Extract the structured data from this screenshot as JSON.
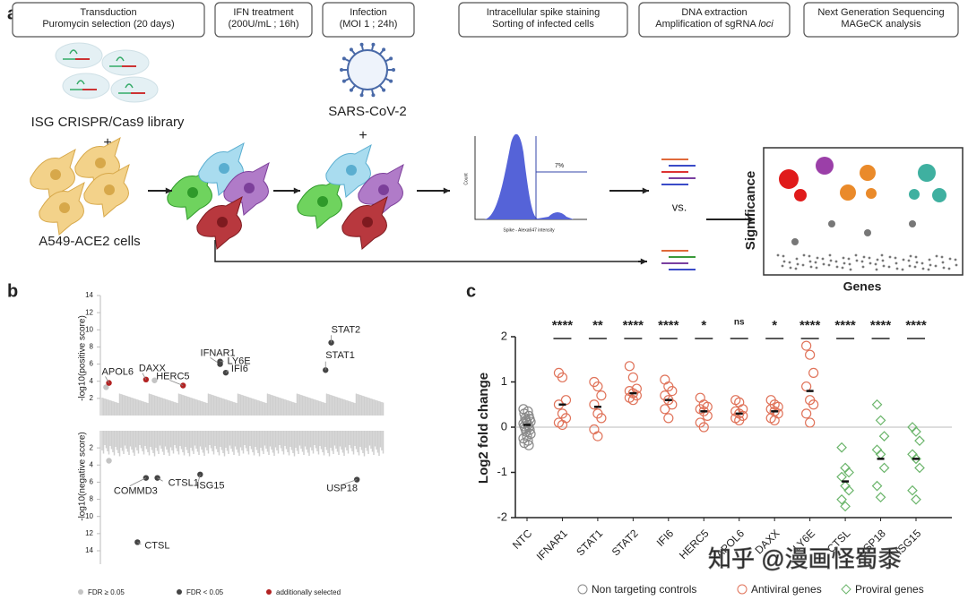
{
  "panel_labels": [
    "a",
    "b",
    "c"
  ],
  "workflow": {
    "steps": [
      [
        "Transduction",
        "Puromycin selection (20 days)"
      ],
      [
        "IFN treatment",
        "(200U/mL ; 16h)"
      ],
      [
        "Infection",
        "(MOI 1 ; 24h)"
      ],
      [
        "Intracellular spike staining",
        "Sorting of infected cells"
      ],
      [
        "DNA extraction",
        [
          "Amplification of sgRNA ",
          "loci"
        ]
      ],
      [
        "Next Generation Sequencing",
        "MAGeCK analysis"
      ]
    ],
    "library": "ISG CRISPR/Cas9 library",
    "plus": "+",
    "cells": "A549-ACE2 cells",
    "virus": "SARS-CoV-2",
    "vs": "vs.",
    "facs": {
      "y_label": "Count",
      "x_label": "Spike - Alexa647 intensity",
      "gate": "7%"
    },
    "significance": "Significance",
    "genes": "Genes"
  },
  "chart_data": [
    {
      "type": "manhattan",
      "ylabel_positive": "-log10(positive score)",
      "ylabel_negative": "-log10(negative score)",
      "ylim": [
        0,
        14
      ],
      "yticks": [
        2,
        4,
        6,
        8,
        10,
        12,
        14
      ],
      "series": [
        {
          "name": "FDR ≥ 0.05",
          "color": "#c4c4c4",
          "positive": [
            3.3,
            4.1
          ],
          "negative": [
            3.5
          ]
        },
        {
          "name": "FDR < 0.05",
          "color": "#444444",
          "positive_genes": [
            "IFNAR1",
            "IFI6",
            "LY6E",
            "STAT2",
            "STAT1"
          ],
          "positive": [
            6.0,
            5.0,
            6.3,
            8.5,
            5.3
          ],
          "negative_genes": [
            "COMMD3",
            "CTSL1",
            "ISG15",
            "USP18",
            "CTSL"
          ],
          "negative": [
            5.5,
            5.5,
            5.1,
            5.7,
            13.0
          ]
        },
        {
          "name": "additionally selected",
          "color": "#b22222",
          "positive_genes": [
            "APOL6",
            "DAXX",
            "HERC5"
          ],
          "positive": [
            3.8,
            4.2,
            3.5
          ]
        }
      ]
    },
    {
      "type": "strip",
      "ylabel": "Log2 fold change",
      "ylim": [
        -2,
        2
      ],
      "yticks": [
        -2,
        -1,
        0,
        1,
        2
      ],
      "categories": [
        "NTC",
        "IFNAR1",
        "STAT1",
        "STAT2",
        "IFI6",
        "HERC5",
        "APOL6",
        "DAXX",
        "LY6E",
        "CTSL",
        "USP18",
        "ISG15"
      ],
      "significance": [
        null,
        "****",
        "**",
        "****",
        "****",
        "*",
        "ns",
        "*",
        "****",
        "****",
        "****",
        "****"
      ],
      "means": [
        0.05,
        0.5,
        0.45,
        0.75,
        0.6,
        0.35,
        0.3,
        0.35,
        0.8,
        -1.2,
        -0.7,
        -0.7
      ],
      "series": [
        {
          "name": "Non targeting controls",
          "color": "#888888",
          "marker": "circle",
          "values": [
            [
              0.4,
              0.35,
              0.3,
              0.25,
              0.2,
              0.18,
              0.15,
              0.12,
              0.1,
              0.08,
              0.05,
              0.02,
              0,
              -0.03,
              -0.06,
              -0.1,
              -0.15,
              -0.2,
              -0.25,
              -0.3,
              -0.35,
              -0.4
            ],
            null,
            null,
            null,
            null,
            null,
            null,
            null,
            null,
            null,
            null,
            null
          ]
        },
        {
          "name": "Antiviral genes",
          "color": "#e0735a",
          "marker": "circle",
          "values": [
            null,
            [
              1.2,
              1.1,
              0.6,
              0.5,
              0.3,
              0.2,
              0.1,
              0.05
            ],
            [
              1.0,
              0.9,
              0.7,
              0.5,
              0.3,
              0.2,
              -0.05,
              -0.2
            ],
            [
              1.35,
              1.1,
              0.85,
              0.8,
              0.75,
              0.7,
              0.65,
              0.6
            ],
            [
              1.05,
              0.9,
              0.8,
              0.7,
              0.6,
              0.5,
              0.4,
              0.2
            ],
            [
              0.65,
              0.5,
              0.45,
              0.4,
              0.35,
              0.25,
              0.1,
              0.0
            ],
            [
              0.6,
              0.55,
              0.4,
              0.35,
              0.3,
              0.25,
              0.2,
              0.15
            ],
            [
              0.6,
              0.5,
              0.45,
              0.4,
              0.35,
              0.3,
              0.2,
              0.15
            ],
            [
              1.8,
              1.6,
              1.2,
              0.9,
              0.6,
              0.5,
              0.3,
              0.1
            ],
            null,
            null,
            null
          ]
        },
        {
          "name": "Proviral genes",
          "color": "#6bb56b",
          "marker": "diamond",
          "values": [
            null,
            null,
            null,
            null,
            null,
            null,
            null,
            null,
            null,
            [
              -0.45,
              -0.9,
              -1.0,
              -1.1,
              -1.3,
              -1.4,
              -1.6,
              -1.75
            ],
            [
              0.5,
              0.15,
              -0.2,
              -0.5,
              -0.6,
              -0.9,
              -1.3,
              -1.55
            ],
            [
              0.0,
              -0.1,
              -0.3,
              -0.6,
              -0.7,
              -0.9,
              -1.4,
              -1.6
            ]
          ]
        }
      ]
    }
  ],
  "watermark": "知乎 @漫画怪蜀黍"
}
